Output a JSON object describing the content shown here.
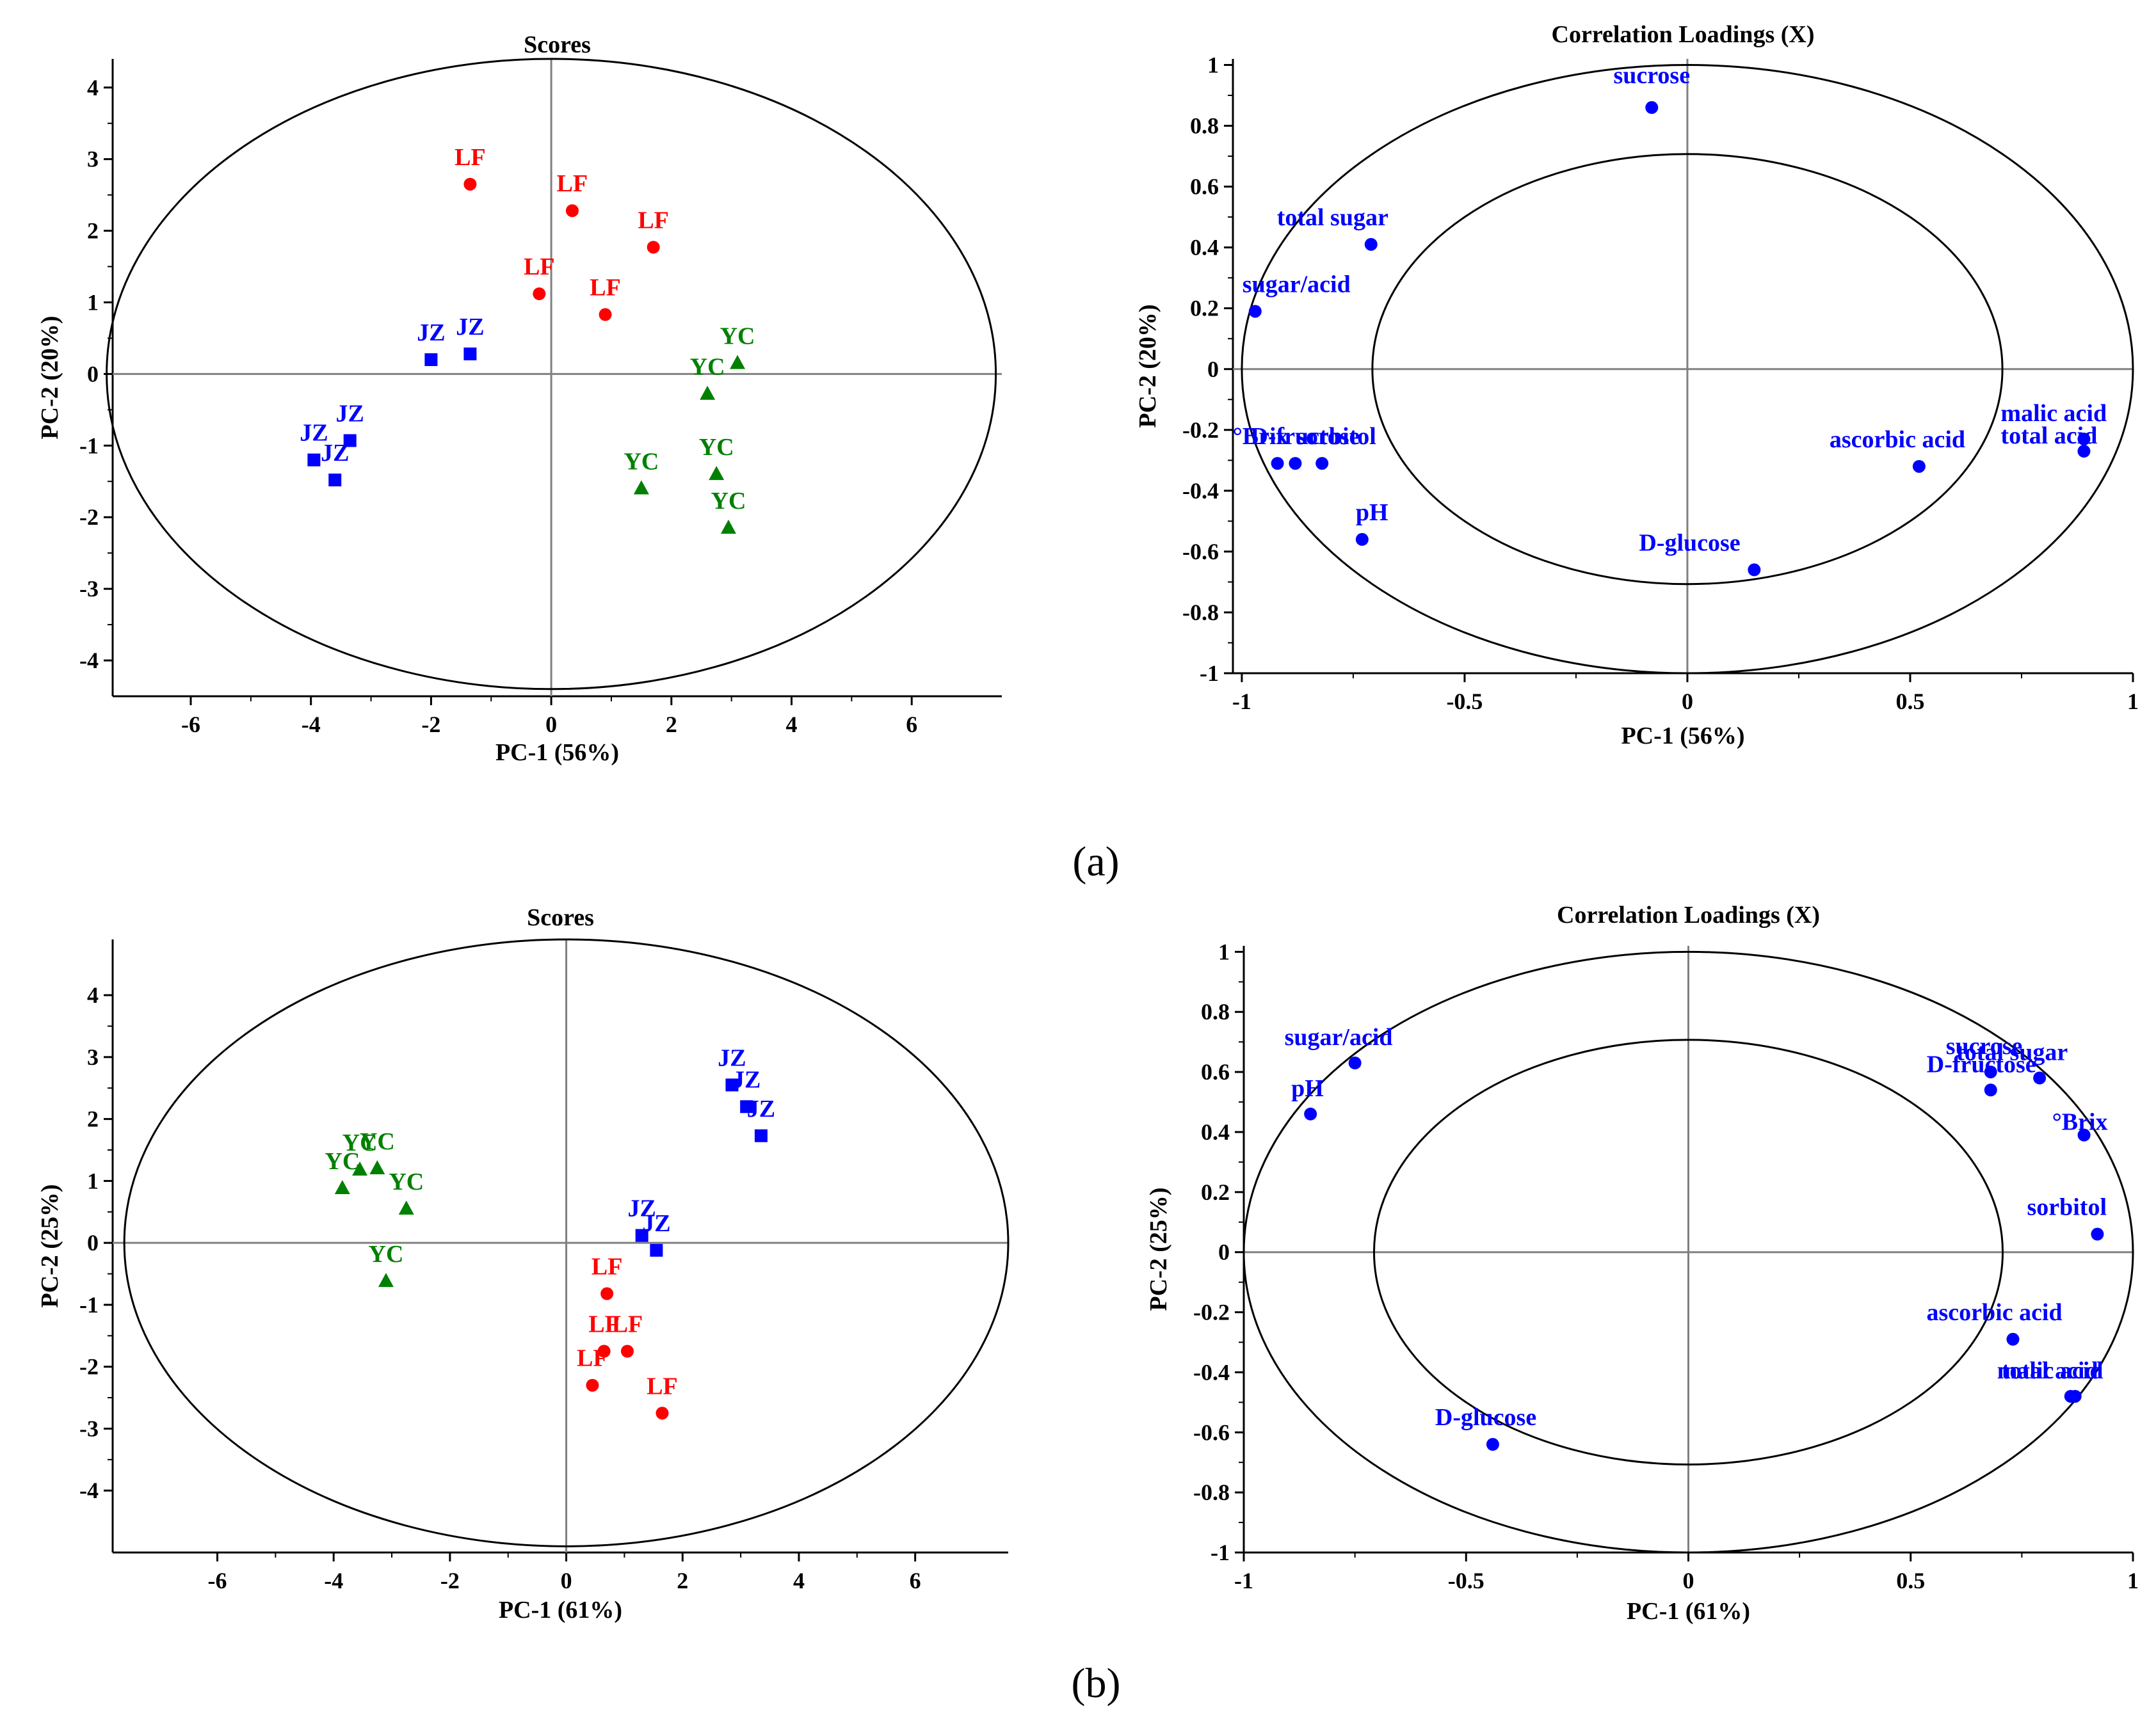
{
  "figure": {
    "captions": [
      "(a)",
      "(b)"
    ]
  },
  "colors": {
    "LF": "#ff0000",
    "JZ": "#0000ff",
    "YC": "#008000",
    "loading": "#0000ff",
    "axis": "#000000",
    "zeroline": "#808080"
  },
  "chart_data": [
    {
      "id": "a-scores",
      "type": "scatter",
      "title": "Scores",
      "xlabel": "PC-1 (56%)",
      "ylabel": "PC-2 (20%)",
      "xlim": [
        -7.3,
        7.5
      ],
      "ylim": [
        -4.5,
        4.4
      ],
      "xticks": [
        -6,
        -4,
        -2,
        0,
        2,
        4,
        6
      ],
      "yticks": [
        -4,
        -3,
        -2,
        -1,
        0,
        1,
        2,
        3,
        4
      ],
      "ellipse": {
        "rx": 7.4,
        "ry": 4.4
      },
      "series": [
        {
          "name": "LF",
          "marker": "circle",
          "points": [
            {
              "x": -1.35,
              "y": 2.65,
              "label": "LF"
            },
            {
              "x": 0.35,
              "y": 2.28,
              "label": "LF"
            },
            {
              "x": 1.7,
              "y": 1.77,
              "label": "LF"
            },
            {
              "x": -0.2,
              "y": 1.12,
              "label": "LF"
            },
            {
              "x": 0.9,
              "y": 0.83,
              "label": "LF"
            }
          ]
        },
        {
          "name": "JZ",
          "marker": "square",
          "points": [
            {
              "x": -2.0,
              "y": 0.2,
              "label": "JZ"
            },
            {
              "x": -1.35,
              "y": 0.28,
              "label": "JZ"
            },
            {
              "x": -3.95,
              "y": -1.2,
              "label": "JZ"
            },
            {
              "x": -3.35,
              "y": -0.93,
              "label": "JZ"
            },
            {
              "x": -3.6,
              "y": -1.48,
              "label": "JZ"
            }
          ]
        },
        {
          "name": "YC",
          "marker": "triangle",
          "points": [
            {
              "x": 3.1,
              "y": 0.15,
              "label": "YC"
            },
            {
              "x": 2.6,
              "y": -0.28,
              "label": "YC"
            },
            {
              "x": 2.75,
              "y": -1.4,
              "label": "YC"
            },
            {
              "x": 1.5,
              "y": -1.6,
              "label": "YC"
            },
            {
              "x": 2.95,
              "y": -2.15,
              "label": "YC"
            }
          ]
        }
      ]
    },
    {
      "id": "a-loadings",
      "type": "scatter",
      "title": "Correlation Loadings (X)",
      "xlabel": "PC-1 (56%)",
      "ylabel": "PC-2 (20%)",
      "xlim": [
        -1.02,
        1.0
      ],
      "ylim": [
        -1.0,
        1.02
      ],
      "xticks": [
        -1,
        -0.5,
        0,
        0.5,
        1
      ],
      "xticklabels": [
        "-1",
        "-0.5",
        "0",
        "0.5",
        "1"
      ],
      "yticks": [
        -1,
        -0.8,
        -0.6,
        -0.4,
        -0.2,
        0,
        0.2,
        0.4,
        0.6,
        0.8,
        1
      ],
      "yticklabels": [
        "-1",
        "-0.8",
        "-0.6",
        "-0.4",
        "-0.2",
        "0",
        "0.2",
        "0.4",
        "0.6",
        "0.8",
        "1"
      ],
      "circles": [
        1.0,
        0.707
      ],
      "series": [
        {
          "name": "variables",
          "marker": "circle",
          "points": [
            {
              "x": -0.08,
              "y": 0.86,
              "label": "sucrose"
            },
            {
              "x": -0.71,
              "y": 0.41,
              "label": "total sugar"
            },
            {
              "x": -0.97,
              "y": 0.19,
              "label": "sugar/acid"
            },
            {
              "x": -0.92,
              "y": -0.31,
              "label": "°Brix"
            },
            {
              "x": -0.88,
              "y": -0.31,
              "label": "D-fructose"
            },
            {
              "x": -0.82,
              "y": -0.31,
              "label": "sorbitol"
            },
            {
              "x": -0.73,
              "y": -0.56,
              "label": "pH"
            },
            {
              "x": 0.15,
              "y": -0.66,
              "label": "D-glucose"
            },
            {
              "x": 0.52,
              "y": -0.32,
              "label": "ascorbic acid"
            },
            {
              "x": 0.89,
              "y": -0.23,
              "label": "malic acid"
            },
            {
              "x": 0.89,
              "y": -0.27,
              "label": "total acid"
            }
          ]
        }
      ]
    },
    {
      "id": "b-scores",
      "type": "scatter",
      "title": "Scores",
      "xlabel": "PC-1 (61%)",
      "ylabel": "PC-2 (25%)",
      "xlim": [
        -7.8,
        7.6
      ],
      "ylim": [
        -5.0,
        4.9
      ],
      "xticks": [
        -6,
        -4,
        -2,
        0,
        2,
        4,
        6
      ],
      "yticks": [
        -4,
        -3,
        -2,
        -1,
        0,
        1,
        2,
        3,
        4
      ],
      "ellipse": {
        "rx": 7.6,
        "ry": 4.9
      },
      "series": [
        {
          "name": "JZ",
          "marker": "square",
          "points": [
            {
              "x": 2.85,
              "y": 2.55,
              "label": "JZ"
            },
            {
              "x": 3.1,
              "y": 2.2,
              "label": "JZ"
            },
            {
              "x": 3.35,
              "y": 1.73,
              "label": "JZ"
            },
            {
              "x": 1.3,
              "y": 0.12,
              "label": "JZ"
            },
            {
              "x": 1.55,
              "y": -0.12,
              "label": "JZ"
            }
          ]
        },
        {
          "name": "YC",
          "marker": "triangle",
          "points": [
            {
              "x": -3.85,
              "y": 0.88,
              "label": "YC"
            },
            {
              "x": -3.55,
              "y": 1.18,
              "label": "YC"
            },
            {
              "x": -3.25,
              "y": 1.2,
              "label": "YC"
            },
            {
              "x": -2.75,
              "y": 0.55,
              "label": "YC"
            },
            {
              "x": -3.1,
              "y": -0.62,
              "label": "YC"
            }
          ]
        },
        {
          "name": "LF",
          "marker": "circle",
          "points": [
            {
              "x": 0.7,
              "y": -0.82,
              "label": "LF"
            },
            {
              "x": 0.65,
              "y": -1.75,
              "label": "LF"
            },
            {
              "x": 1.05,
              "y": -1.75,
              "label": "LF"
            },
            {
              "x": 0.45,
              "y": -2.3,
              "label": "LF"
            },
            {
              "x": 1.65,
              "y": -2.75,
              "label": "LF"
            }
          ]
        }
      ]
    },
    {
      "id": "b-loadings",
      "type": "scatter",
      "title": "Correlation Loadings (X)",
      "xlabel": "PC-1 (61%)",
      "ylabel": "PC-2 (25%)",
      "xlim": [
        -1.0,
        1.0
      ],
      "ylim": [
        -1.0,
        1.02
      ],
      "xticks": [
        -1,
        -0.5,
        0,
        0.5,
        1
      ],
      "xticklabels": [
        "-1",
        "-0.5",
        "0",
        "0.5",
        "1"
      ],
      "yticks": [
        -1,
        -0.8,
        -0.6,
        -0.4,
        -0.2,
        0,
        0.2,
        0.4,
        0.6,
        0.8,
        1
      ],
      "yticklabels": [
        "-1",
        "-0.8",
        "-0.6",
        "-0.4",
        "-0.2",
        "0",
        "0.2",
        "0.4",
        "0.6",
        "0.8",
        "1"
      ],
      "circles": [
        1.0,
        0.707
      ],
      "series": [
        {
          "name": "variables",
          "marker": "circle",
          "points": [
            {
              "x": -0.75,
              "y": 0.63,
              "label": "sugar/acid"
            },
            {
              "x": -0.85,
              "y": 0.46,
              "label": "pH"
            },
            {
              "x": 0.68,
              "y": 0.6,
              "label": "sucrose"
            },
            {
              "x": 0.79,
              "y": 0.58,
              "label": "total sugar"
            },
            {
              "x": 0.68,
              "y": 0.54,
              "label": "D-fructose"
            },
            {
              "x": 0.89,
              "y": 0.39,
              "label": "°Brix"
            },
            {
              "x": 0.92,
              "y": 0.06,
              "label": "sorbitol"
            },
            {
              "x": 0.73,
              "y": -0.29,
              "label": "ascorbic acid"
            },
            {
              "x": 0.86,
              "y": -0.48,
              "label": "malic acid"
            },
            {
              "x": 0.87,
              "y": -0.48,
              "label": "total acid"
            },
            {
              "x": -0.44,
              "y": -0.64,
              "label": "D-glucose"
            }
          ]
        }
      ]
    }
  ]
}
